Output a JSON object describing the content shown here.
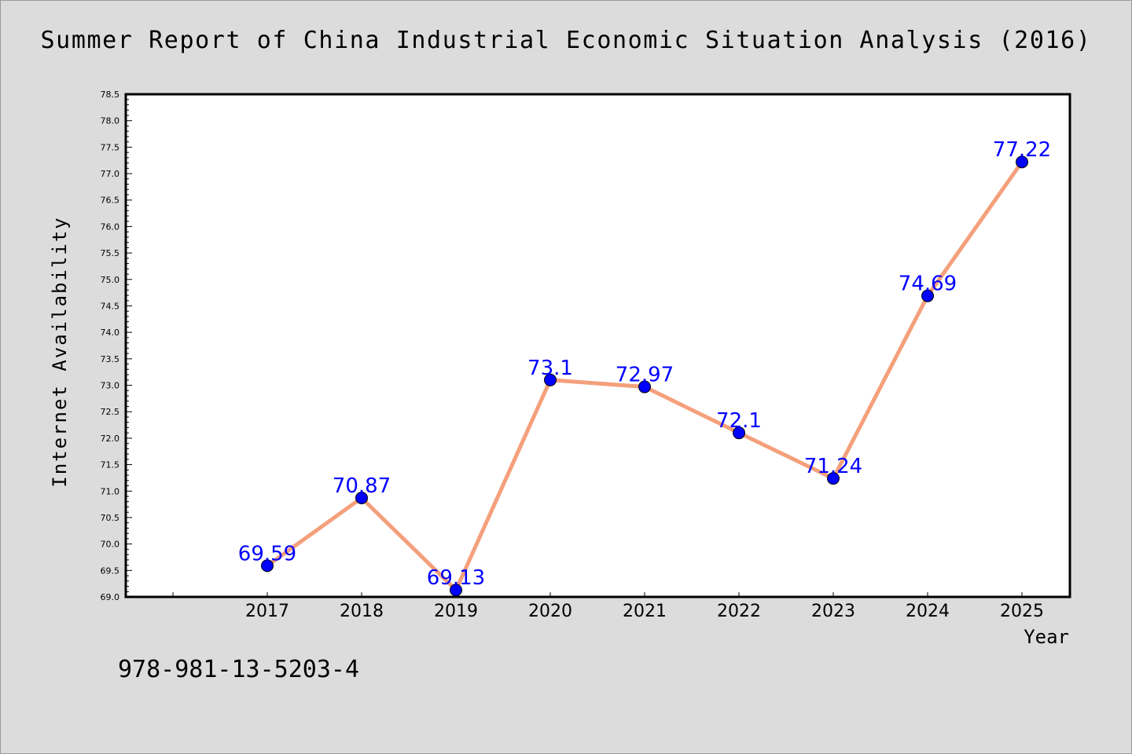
{
  "chart_data": {
    "type": "line",
    "title": "Summer Report of China Industrial Economic Situation Analysis (2016)",
    "xlabel": "Year",
    "ylabel": "Internet Availability",
    "categories": [
      "2017",
      "2018",
      "2019",
      "2020",
      "2021",
      "2022",
      "2023",
      "2024",
      "2025"
    ],
    "series": [
      {
        "values": [
          69.59,
          70.87,
          69.13,
          73.1,
          72.97,
          72.1,
          71.24,
          74.69,
          77.22
        ],
        "data_labels": [
          "69.59",
          "70.87",
          "69.13",
          "73.1",
          "72.97",
          "72.1",
          "71.24",
          "74.69",
          "77.22"
        ],
        "line_color": "#f4a07c",
        "marker_color": "#0000ff",
        "label_color": "#0000ff"
      }
    ],
    "ylim": [
      69.0,
      78.5
    ],
    "yticks": [
      "69.0",
      "69.5",
      "70.0",
      "70.5",
      "71.0",
      "71.5",
      "72.0",
      "72.5",
      "73.0",
      "73.5",
      "74.0",
      "74.5",
      "75.0",
      "75.5",
      "76.0",
      "76.5",
      "77.0",
      "77.5",
      "78.0",
      "78.5"
    ],
    "grid": false,
    "background": "#dcdcdc",
    "plot_background": "#ffffff"
  },
  "footer": {
    "code": "978-981-13-5203-4"
  }
}
